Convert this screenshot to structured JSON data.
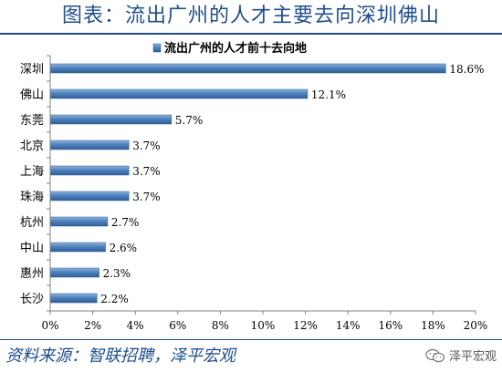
{
  "figure": {
    "title": "图表：流出广州的人才主要去向深圳佛山",
    "source": "资料来源：智联招聘，泽平宏观",
    "watermark": "泽平宏观",
    "accent_color": "#1f4e8c"
  },
  "chart_data": {
    "type": "bar",
    "orientation": "horizontal",
    "title": "流出广州的人才前十去向地",
    "legend_position": "top",
    "categories": [
      "深圳",
      "佛山",
      "东莞",
      "北京",
      "上海",
      "珠海",
      "杭州",
      "中山",
      "惠州",
      "长沙"
    ],
    "values": [
      18.6,
      12.1,
      5.7,
      3.7,
      3.7,
      3.7,
      2.7,
      2.6,
      2.3,
      2.2
    ],
    "data_labels": [
      "18.6%",
      "12.1%",
      "5.7%",
      "3.7%",
      "3.7%",
      "3.7%",
      "2.7%",
      "2.6%",
      "2.3%",
      "2.2%"
    ],
    "xlim": [
      0,
      20
    ],
    "x_ticks": [
      "0%",
      "2%",
      "4%",
      "6%",
      "8%",
      "10%",
      "12%",
      "14%",
      "16%",
      "18%",
      "20%"
    ],
    "grid": false,
    "bar_color": "#4f81bd"
  }
}
